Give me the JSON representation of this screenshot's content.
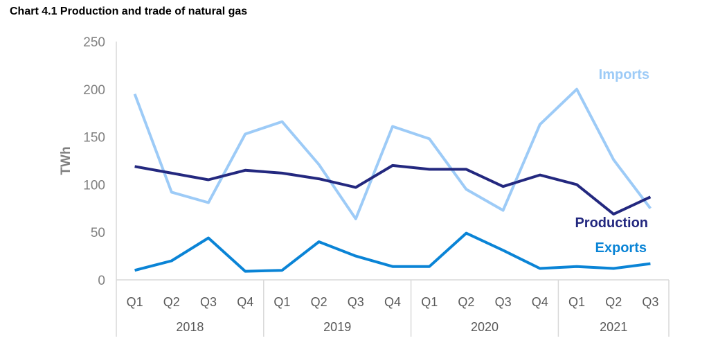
{
  "chart_data": {
    "type": "line",
    "title": "Chart 4.1 Production and trade of natural gas",
    "xlabel": "",
    "ylabel": "TWh",
    "ylim": [
      0,
      250
    ],
    "yticks": [
      0,
      50,
      100,
      150,
      200,
      250
    ],
    "grid": false,
    "categories": [
      "Q1",
      "Q2",
      "Q3",
      "Q4",
      "Q1",
      "Q2",
      "Q3",
      "Q4",
      "Q1",
      "Q2",
      "Q3",
      "Q4",
      "Q1",
      "Q2",
      "Q3"
    ],
    "groups": [
      {
        "label": "2018",
        "count": 4
      },
      {
        "label": "2019",
        "count": 4
      },
      {
        "label": "2020",
        "count": 4
      },
      {
        "label": "2021",
        "count": 3
      }
    ],
    "series": [
      {
        "name": "Imports",
        "color": "#9dcbf7",
        "values": [
          195,
          92,
          81,
          153,
          166,
          121,
          64,
          161,
          148,
          95,
          73,
          163,
          200,
          126,
          75
        ]
      },
      {
        "name": "Production",
        "color": "#23287f",
        "values": [
          119,
          112,
          105,
          115,
          112,
          106,
          97,
          120,
          116,
          116,
          98,
          110,
          100,
          69,
          87
        ]
      },
      {
        "name": "Exports",
        "color": "#0a84d6",
        "values": [
          10,
          20,
          44,
          9,
          10,
          40,
          25,
          14,
          14,
          49,
          31,
          12,
          14,
          12,
          17
        ]
      }
    ]
  }
}
